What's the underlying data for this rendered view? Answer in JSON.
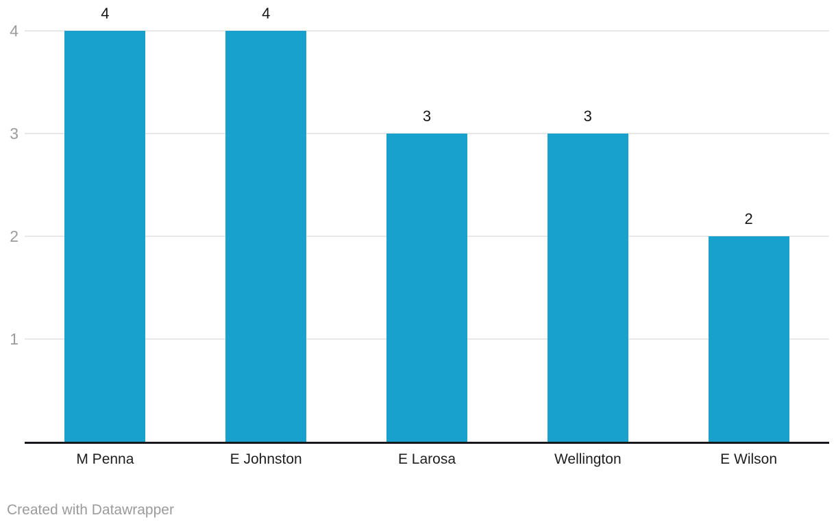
{
  "chart_data": {
    "type": "bar",
    "orientation": "vertical",
    "categories": [
      "M Penna",
      "E Johnston",
      "E Larosa",
      "Wellington",
      "E Wilson"
    ],
    "values": [
      4,
      4,
      3,
      3,
      2
    ],
    "bar_labels": [
      "4",
      "4",
      "3",
      "3",
      "2"
    ],
    "yticks": [
      1,
      2,
      3,
      4
    ],
    "ylim": [
      0,
      4
    ],
    "grid": true,
    "legend_position": "none"
  },
  "colors": {
    "bar": "#18a1cd",
    "axis_tick_text": "#9b9b9b",
    "category_text": "#1d1d1d",
    "value_label_text": "#151515",
    "gridline": "#e8e8e8",
    "baseline": "#17181c",
    "credit_text": "#9b9b9b",
    "background": "#ffffff"
  },
  "footer": {
    "credit": "Created with Datawrapper"
  }
}
